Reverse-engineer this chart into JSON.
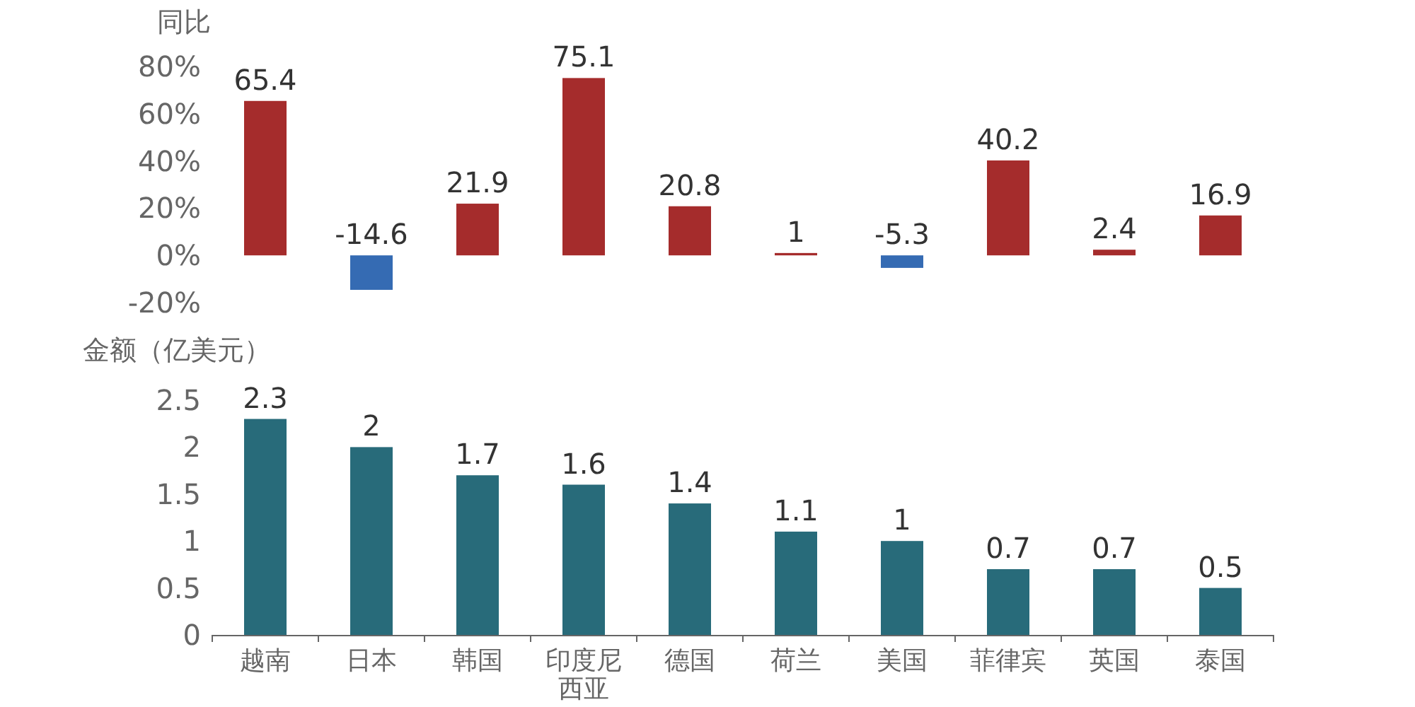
{
  "chart_data": [
    {
      "type": "bar",
      "ylabel": "同比",
      "categories": [
        "越南",
        "日本",
        "韩国",
        "印度尼西亚",
        "德国",
        "荷兰",
        "美国",
        "菲律宾",
        "英国",
        "泰国"
      ],
      "values": [
        65.4,
        -14.6,
        21.9,
        75.1,
        20.8,
        1,
        -5.3,
        40.2,
        2.4,
        16.9
      ],
      "colors": [
        "#a52c2c",
        "#356bb3",
        "#a52c2c",
        "#a52c2c",
        "#a52c2c",
        "#a52c2c",
        "#356bb3",
        "#a52c2c",
        "#a52c2c",
        "#a52c2c"
      ],
      "ylim": [
        -20,
        80
      ],
      "yticks": [
        {
          "value": -20,
          "label": "-20%"
        },
        {
          "value": 0,
          "label": "0%"
        },
        {
          "value": 20,
          "label": "20%"
        },
        {
          "value": 40,
          "label": "40%"
        },
        {
          "value": 60,
          "label": "60%"
        },
        {
          "value": 80,
          "label": "80%"
        }
      ],
      "tick_labels": "y",
      "data_labels": true
    },
    {
      "type": "bar",
      "ylabel": "金额（亿美元）",
      "categories": [
        "越南",
        "日本",
        "韩国",
        "印度尼西亚",
        "德国",
        "荷兰",
        "美国",
        "菲律宾",
        "英国",
        "泰国"
      ],
      "values": [
        2.3,
        2,
        1.7,
        1.6,
        1.4,
        1.1,
        1,
        0.7,
        0.7,
        0.5
      ],
      "color": "#286b7a",
      "ylim": [
        0,
        2.5
      ],
      "yticks": [
        0,
        0.5,
        1,
        1.5,
        2,
        2.5
      ],
      "data_labels": true
    }
  ]
}
